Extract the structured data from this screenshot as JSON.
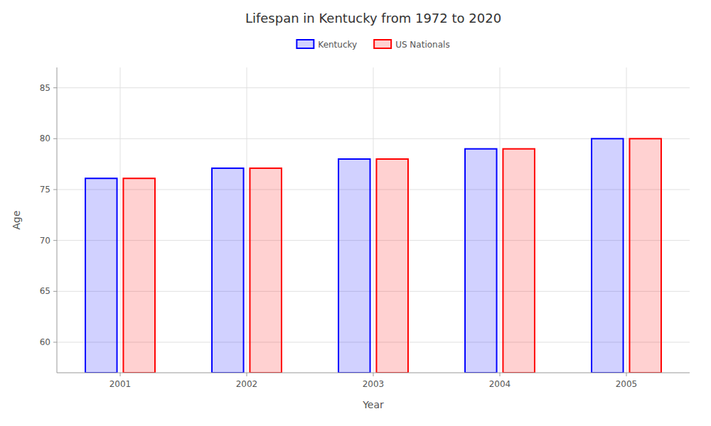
{
  "chart_data": {
    "type": "bar",
    "title": "Lifespan in Kentucky from 1972 to 2020",
    "x_label": "Year",
    "y_label": "Age",
    "categories": [
      "2001",
      "2002",
      "2003",
      "2004",
      "2005"
    ],
    "series": [
      {
        "name": "Kentucky",
        "color": "#0000ff",
        "values": [
          76.1,
          77.1,
          78.0,
          79.0,
          80.0
        ]
      },
      {
        "name": "US Nationals",
        "color": "#ff0000",
        "values": [
          76.1,
          77.1,
          78.0,
          79.0,
          80.0
        ]
      }
    ],
    "ylim": [
      57,
      87
    ],
    "yticks": [
      60,
      65,
      70,
      75,
      80,
      85
    ],
    "grid": true,
    "legend": "top"
  }
}
